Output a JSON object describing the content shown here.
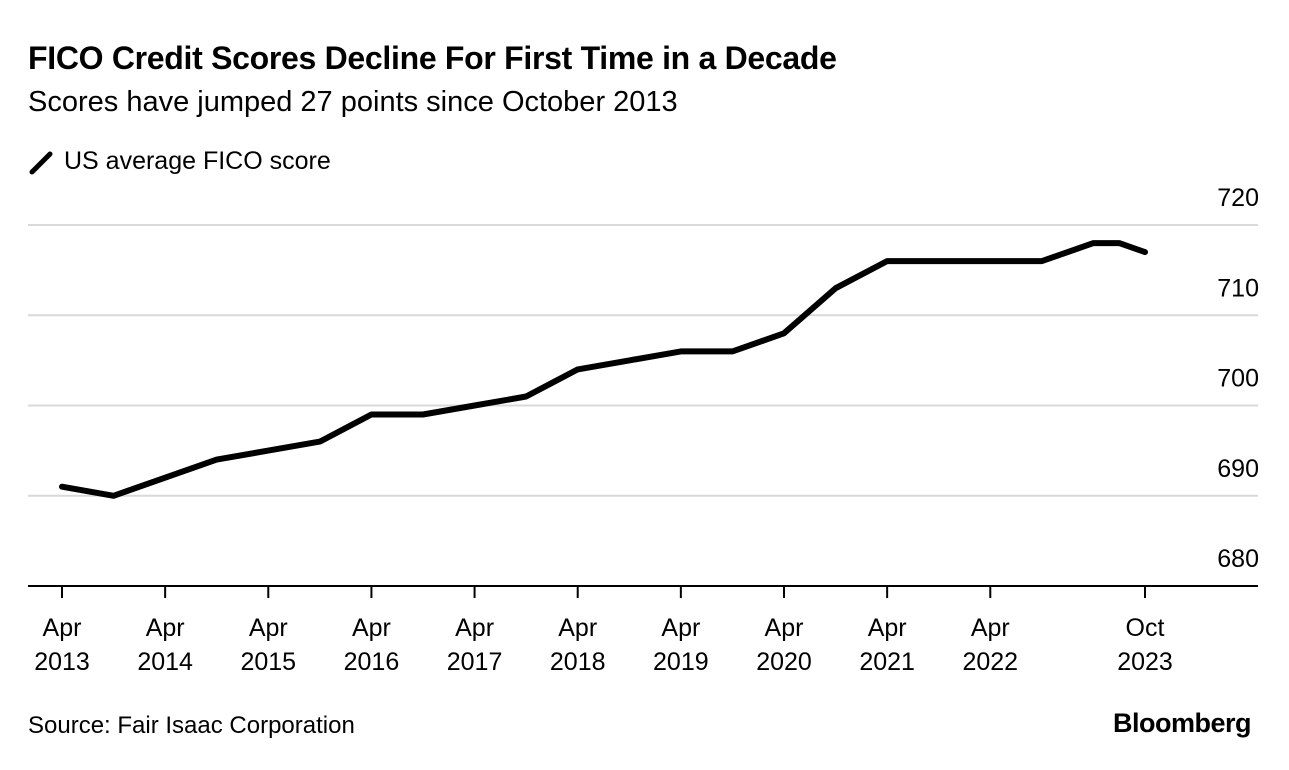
{
  "title": "FICO Credit Scores Decline For First Time in a Decade",
  "subtitle": "Scores have jumped 27 points since October 2013",
  "legend": {
    "label": "US average FICO score",
    "color": "#000000"
  },
  "source": "Source: Fair Isaac Corporation",
  "brand": "Bloomberg",
  "chart_data": {
    "type": "line",
    "title": "FICO Credit Scores Decline For First Time in a Decade",
    "subtitle": "Scores have jumped 27 points since October 2013",
    "xlabel": "",
    "ylabel": "",
    "ylim": [
      680,
      720
    ],
    "yticks": [
      680,
      690,
      700,
      710,
      720
    ],
    "grid": true,
    "legend_position": "top-left",
    "x_ticks": [
      {
        "value": 2013.25,
        "line1": "Apr",
        "line2": "2013"
      },
      {
        "value": 2014.25,
        "line1": "Apr",
        "line2": "2014"
      },
      {
        "value": 2015.25,
        "line1": "Apr",
        "line2": "2015"
      },
      {
        "value": 2016.25,
        "line1": "Apr",
        "line2": "2016"
      },
      {
        "value": 2017.25,
        "line1": "Apr",
        "line2": "2017"
      },
      {
        "value": 2018.25,
        "line1": "Apr",
        "line2": "2018"
      },
      {
        "value": 2019.25,
        "line1": "Apr",
        "line2": "2019"
      },
      {
        "value": 2020.25,
        "line1": "Apr",
        "line2": "2020"
      },
      {
        "value": 2021.25,
        "line1": "Apr",
        "line2": "2021"
      },
      {
        "value": 2022.25,
        "line1": "Apr",
        "line2": "2022"
      },
      {
        "value": 2023.75,
        "line1": "Oct",
        "line2": "2023"
      }
    ],
    "series": [
      {
        "name": "US average FICO score",
        "color": "#000000",
        "points": [
          {
            "date": "Apr 2013",
            "x": 2013.25,
            "y": 691
          },
          {
            "date": "Oct 2013",
            "x": 2013.75,
            "y": 690
          },
          {
            "date": "Apr 2014",
            "x": 2014.25,
            "y": 692
          },
          {
            "date": "Oct 2014",
            "x": 2014.75,
            "y": 694
          },
          {
            "date": "Apr 2015",
            "x": 2015.25,
            "y": 695
          },
          {
            "date": "Oct 2015",
            "x": 2015.75,
            "y": 696
          },
          {
            "date": "Apr 2016",
            "x": 2016.25,
            "y": 699
          },
          {
            "date": "Oct 2016",
            "x": 2016.75,
            "y": 699
          },
          {
            "date": "Apr 2017",
            "x": 2017.25,
            "y": 700
          },
          {
            "date": "Oct 2017",
            "x": 2017.75,
            "y": 701
          },
          {
            "date": "Apr 2018",
            "x": 2018.25,
            "y": 704
          },
          {
            "date": "Oct 2018",
            "x": 2018.75,
            "y": 705
          },
          {
            "date": "Apr 2019",
            "x": 2019.25,
            "y": 706
          },
          {
            "date": "Oct 2019",
            "x": 2019.75,
            "y": 706
          },
          {
            "date": "Apr 2020",
            "x": 2020.25,
            "y": 708
          },
          {
            "date": "Oct 2020",
            "x": 2020.75,
            "y": 713
          },
          {
            "date": "Apr 2021",
            "x": 2021.25,
            "y": 716
          },
          {
            "date": "Oct 2021",
            "x": 2021.75,
            "y": 716
          },
          {
            "date": "Apr 2022",
            "x": 2022.25,
            "y": 716
          },
          {
            "date": "Oct 2022",
            "x": 2022.75,
            "y": 716
          },
          {
            "date": "Apr 2023",
            "x": 2023.25,
            "y": 718
          },
          {
            "date": "Jul 2023",
            "x": 2023.5,
            "y": 718
          },
          {
            "date": "Oct 2023",
            "x": 2023.75,
            "y": 717
          }
        ]
      }
    ]
  }
}
